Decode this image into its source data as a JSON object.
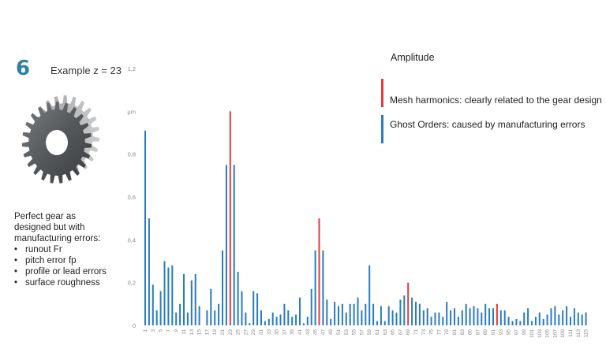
{
  "header": {
    "step_number": "6",
    "example_text": "Example z = 23"
  },
  "description": {
    "intro_line1": "Perfect gear as",
    "intro_line2": "designed but with",
    "intro_line3": "manufacturing errors:",
    "bullets": [
      "runout Fr",
      "pitch error fp",
      "profile or lead errors",
      "surface roughness"
    ]
  },
  "legend": {
    "title": "Amplitude",
    "items": [
      {
        "label": "Mesh harmonics: clearly related to the gear design",
        "color": "#e23b3b"
      },
      {
        "label": "Ghost Orders: caused by manufacturing errors",
        "color": "#2a7bbf"
      }
    ]
  },
  "colors": {
    "ghost": "#2a7bbf",
    "mesh": "#e23b3b",
    "axis_text": "#888888"
  },
  "chart_data": {
    "type": "bar",
    "ylim": [
      0,
      1.2
    ],
    "y_ticks": [
      "0",
      "0,2",
      "0,4",
      "0,6",
      "0,8",
      "µm",
      "1,2"
    ],
    "x_tick_labels": [
      "1",
      "3",
      "5",
      "7",
      "9",
      "11",
      "13",
      "15",
      "17",
      "19",
      "21",
      "23",
      "25",
      "27",
      "29",
      "31",
      "33",
      "35",
      "37",
      "39",
      "41",
      "43",
      "45",
      "47",
      "49",
      "51",
      "53",
      "55",
      "57",
      "59",
      "61",
      "63",
      "65",
      "67",
      "69",
      "71",
      "73",
      "75",
      "77",
      "79",
      "81",
      "83",
      "85",
      "87",
      "89",
      "91",
      "93",
      "95",
      "97",
      "99",
      "101",
      "103",
      "105",
      "107",
      "109",
      "111",
      "113",
      "115"
    ],
    "orders": [
      1,
      2,
      3,
      4,
      5,
      6,
      7,
      8,
      9,
      10,
      11,
      12,
      13,
      14,
      15,
      16,
      17,
      18,
      19,
      20,
      21,
      22,
      23,
      24,
      25,
      26,
      27,
      28,
      29,
      30,
      31,
      32,
      33,
      34,
      35,
      36,
      37,
      38,
      39,
      40,
      41,
      42,
      43,
      44,
      45,
      46,
      47,
      48,
      49,
      50,
      51,
      52,
      53,
      54,
      55,
      56,
      57,
      58,
      59,
      60,
      61,
      62,
      63,
      64,
      65,
      66,
      67,
      68,
      69,
      70,
      71,
      72,
      73,
      74,
      75,
      76,
      77,
      78,
      79,
      80,
      81,
      82,
      83,
      84,
      85,
      86,
      87,
      88,
      89,
      90,
      91,
      92,
      93,
      94,
      95,
      96,
      97,
      98,
      99,
      100,
      101,
      102,
      103,
      104,
      105,
      106,
      107,
      108,
      109,
      110,
      111,
      112,
      113,
      114,
      115
    ],
    "series": [
      {
        "name": "Ghost Orders: caused by manufacturing errors",
        "type": "ghost",
        "values": [
          0.91,
          0.5,
          0.19,
          0.07,
          0.16,
          0.3,
          0.27,
          0.28,
          0.06,
          0.1,
          0.24,
          0.06,
          0.21,
          0.24,
          0.09,
          0.0,
          0.07,
          0.17,
          0.07,
          0.1,
          0.35,
          0.75,
          0.0,
          0.75,
          0.25,
          0.16,
          0.06,
          0.01,
          0.16,
          0.15,
          0.07,
          0.02,
          0.03,
          0.06,
          0.04,
          0.05,
          0.1,
          0.07,
          0.04,
          0.05,
          0.13,
          0.01,
          0.04,
          0.17,
          0.35,
          0.0,
          0.35,
          0.12,
          0.03,
          0.11,
          0.09,
          0.1,
          0.06,
          0.1,
          0.1,
          0.13,
          0.07,
          0.1,
          0.28,
          0.1,
          0.02,
          0.09,
          0.02,
          0.09,
          0.07,
          0.06,
          0.12,
          0.14,
          0.0,
          0.13,
          0.11,
          0.1,
          0.07,
          0.08,
          0.04,
          0.06,
          0.06,
          0.04,
          0.11,
          0.07,
          0.08,
          0.04,
          0.07,
          0.1,
          0.08,
          0.09,
          0.08,
          0.06,
          0.1,
          0.08,
          0.08,
          0.0,
          0.07,
          0.07,
          0.04,
          0.02,
          0.03,
          0.02,
          0.06,
          0.08,
          0.02,
          0.04,
          0.06,
          0.03,
          0.05,
          0.08,
          0.09,
          0.05,
          0.07,
          0.09,
          0.04,
          0.08,
          0.06,
          0.05,
          0.06
        ]
      },
      {
        "name": "Mesh harmonics: clearly related to the gear design",
        "type": "mesh",
        "orders": [
          23,
          46,
          69,
          92
        ],
        "values": [
          1.0,
          0.5,
          0.2,
          0.1
        ]
      }
    ]
  }
}
